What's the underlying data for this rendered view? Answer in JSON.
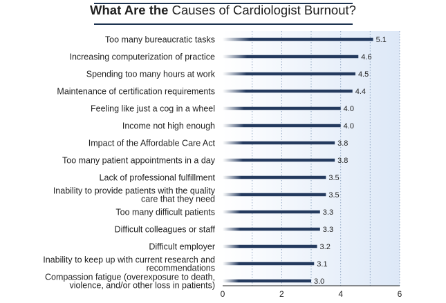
{
  "title": {
    "bold_part": "What Are the",
    "regular_part": "Causes of Cardiologist Burnout?"
  },
  "colors": {
    "bar": "#243a5e",
    "plot_background_left": "#ffffff",
    "plot_background_right": "#dde8f7",
    "gridline": "#8fa4c2",
    "title_rule": "#1d3350"
  },
  "chart_data": {
    "type": "bar",
    "orientation": "horizontal",
    "title": "What Are the Causes of Cardiologist Burnout?",
    "categories": [
      "Too many bureaucratic tasks",
      "Increasing computerization of practice",
      "Spending too many hours at work",
      "Maintenance of certification requirements",
      "Feeling like just a cog in a wheel",
      "Income not high enough",
      "Impact of the Affordable Care Act",
      "Too many patient appointments in a day",
      "Lack of professional fulfillment",
      "Inability to provide patients with the quality care that they need",
      "Too many difficult patients",
      "Difficult colleagues or staff",
      "Difficult employer",
      "Inability to keep up with current research and recommendations",
      "Compassion fatigue (overexposure to death, violence, and/or other loss in patients)"
    ],
    "category_lines": [
      [
        "Too many bureaucratic tasks"
      ],
      [
        "Increasing computerization of practice"
      ],
      [
        "Spending too many hours at work"
      ],
      [
        "Maintenance of certification requirements"
      ],
      [
        "Feeling like just a cog in a wheel"
      ],
      [
        "Income not high enough"
      ],
      [
        "Impact of the Affordable Care Act"
      ],
      [
        "Too many patient appointments in a day"
      ],
      [
        "Lack of professional fulfillment"
      ],
      [
        "Inability to provide patients with the quality",
        "care that they need"
      ],
      [
        "Too many difficult patients"
      ],
      [
        "Difficult colleagues or staff"
      ],
      [
        "Difficult employer"
      ],
      [
        "Inability to keep up with current research and",
        "recommendations"
      ],
      [
        "Compassion fatigue (overexposure to death,",
        "violence, and/or other loss in patients)"
      ]
    ],
    "values": [
      5.1,
      4.6,
      4.5,
      4.4,
      4.0,
      4.0,
      3.8,
      3.8,
      3.5,
      3.5,
      3.3,
      3.3,
      3.2,
      3.1,
      3.0
    ],
    "value_labels": [
      "5.1",
      "4.6",
      "4.5",
      "4.4",
      "4.0",
      "4.0",
      "3.8",
      "3.8",
      "3.5",
      "3.5",
      "3.3",
      "3.3",
      "3.2",
      "3.1",
      "3.0"
    ],
    "xlim": [
      0,
      6
    ],
    "xticks": [
      0,
      2,
      4,
      6
    ],
    "xtick_labels": [
      "0",
      "2",
      "4",
      "6"
    ],
    "grid": "vertical dotted at every 1 unit",
    "xlabel": "",
    "ylabel": ""
  }
}
